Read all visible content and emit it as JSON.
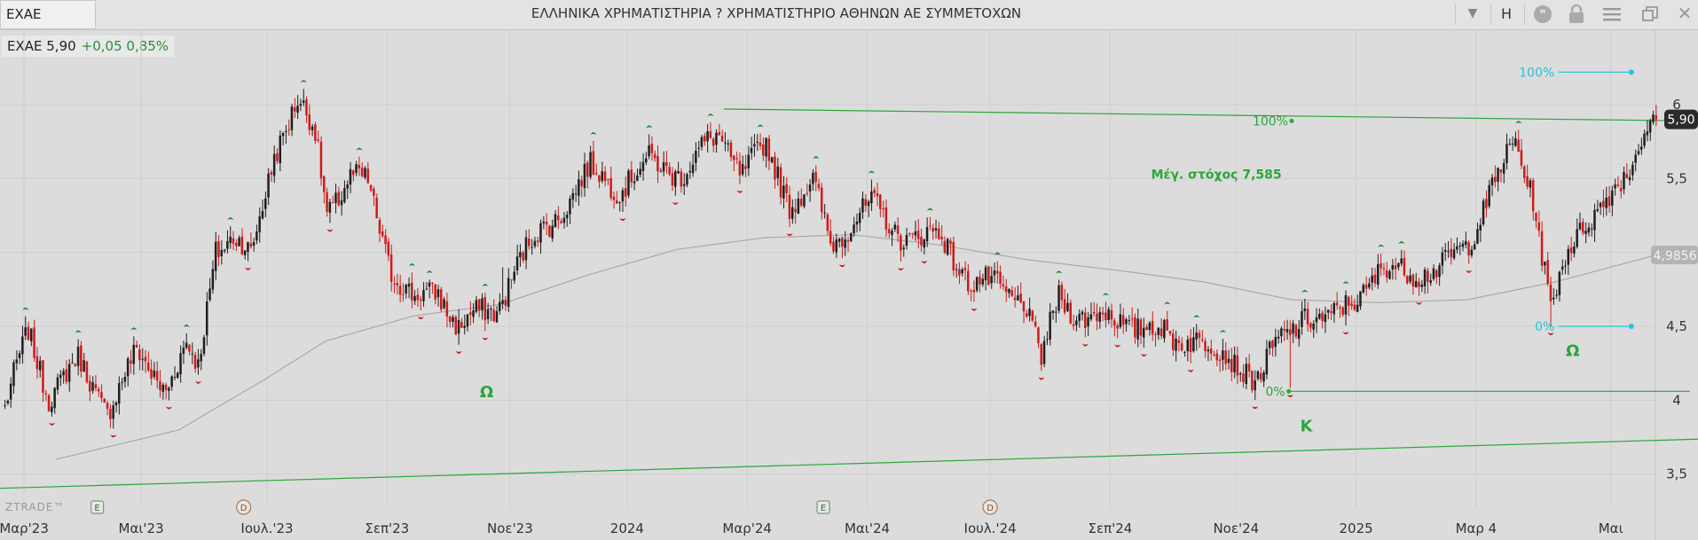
{
  "toolbar": {
    "symbol": "EXAE",
    "title": "ΕΛΛΗΝΙΚΑ ΧΡΗΜΑΤΙΣΤΗΡΙΑ ? ΧΡΗΜΑΤΙΣΤΗΡΙΟ ΑΘΗΝΩΝ ΑΕ ΣΥΜΜΕΤΟΧΩΝ",
    "period_label": "H",
    "icons": [
      "chevron-down-icon",
      "chat-icon",
      "lock-icon",
      "menu-icon",
      "restore-icon",
      "close-icon"
    ]
  },
  "quote": {
    "symbol_price": "EXAE 5,90",
    "change": "+0,05 0,85%"
  },
  "branding": {
    "watermark": "ZTRADE™"
  },
  "colors": {
    "up_candle": "#1f1f1f",
    "down_candle": "#d01a1a",
    "trend_line": "#2aa63a",
    "moving_average": "#a9a9a9",
    "fib_cyan": "#22c6d6",
    "marker_green": "#1c8a32",
    "marker_red": "#cc1a1a"
  },
  "chart_data": {
    "type": "candlestick",
    "ylim": [
      3.33,
      6.27
    ],
    "y_ticks": [
      {
        "value": 6,
        "label": "6"
      },
      {
        "value": 5.5,
        "label": "5,5"
      },
      {
        "value": 5,
        "label": "5"
      },
      {
        "value": 4.5,
        "label": "4,5"
      },
      {
        "value": 4,
        "label": "4"
      },
      {
        "value": 3.5,
        "label": "3,5"
      }
    ],
    "x_ticks": [
      "Μαρ'23",
      "Μαι'23",
      "Ιουλ.'23",
      "Σεπ'23",
      "Νοε'23",
      "2024",
      "Μαρ'24",
      "Μαι'24",
      "Ιουλ.'24",
      "Σεπ'24",
      "Νοε'24",
      "2025",
      "Μαρ 4",
      "Μαι"
    ],
    "x_tick_index": [
      7,
      47,
      90,
      131,
      173,
      213,
      254,
      295,
      337,
      378,
      421,
      462,
      503,
      549
    ],
    "price_anchors": [
      [
        0,
        3.95
      ],
      [
        8,
        4.45
      ],
      [
        15,
        4.05
      ],
      [
        25,
        4.25
      ],
      [
        35,
        3.95
      ],
      [
        45,
        4.3
      ],
      [
        55,
        4.1
      ],
      [
        62,
        4.35
      ],
      [
        66,
        4.2
      ],
      [
        72,
        5.05
      ],
      [
        78,
        5.1
      ],
      [
        84,
        4.95
      ],
      [
        92,
        5.7
      ],
      [
        100,
        6.0
      ],
      [
        106,
        5.8
      ],
      [
        110,
        5.3
      ],
      [
        118,
        5.5
      ],
      [
        124,
        5.45
      ],
      [
        132,
        4.9
      ],
      [
        140,
        4.65
      ],
      [
        148,
        4.75
      ],
      [
        155,
        4.5
      ],
      [
        160,
        4.55
      ],
      [
        168,
        4.62
      ],
      [
        174,
        4.9
      ],
      [
        182,
        5.1
      ],
      [
        190,
        5.3
      ],
      [
        200,
        5.55
      ],
      [
        210,
        5.45
      ],
      [
        220,
        5.6
      ],
      [
        232,
        5.55
      ],
      [
        244,
        5.8
      ],
      [
        252,
        5.55
      ],
      [
        260,
        5.7
      ],
      [
        268,
        5.35
      ],
      [
        276,
        5.45
      ],
      [
        282,
        5.05
      ],
      [
        290,
        5.25
      ],
      [
        296,
        5.3
      ],
      [
        304,
        5.15
      ],
      [
        312,
        5.1
      ],
      [
        320,
        5.1
      ],
      [
        330,
        4.8
      ],
      [
        340,
        4.75
      ],
      [
        348,
        4.7
      ],
      [
        354,
        4.25
      ],
      [
        360,
        4.7
      ],
      [
        370,
        4.55
      ],
      [
        380,
        4.55
      ],
      [
        390,
        4.5
      ],
      [
        398,
        4.4
      ],
      [
        406,
        4.45
      ],
      [
        414,
        4.3
      ],
      [
        422,
        4.25
      ],
      [
        428,
        4.15
      ],
      [
        436,
        4.4
      ],
      [
        444,
        4.6
      ],
      [
        452,
        4.5
      ],
      [
        460,
        4.7
      ],
      [
        470,
        4.85
      ],
      [
        480,
        4.9
      ],
      [
        490,
        4.85
      ],
      [
        500,
        5.1
      ],
      [
        510,
        5.5
      ],
      [
        516,
        5.75
      ],
      [
        522,
        5.4
      ],
      [
        528,
        4.6
      ],
      [
        534,
        5.0
      ],
      [
        540,
        5.25
      ],
      [
        548,
        5.35
      ],
      [
        554,
        5.5
      ],
      [
        560,
        5.88
      ],
      [
        563,
        5.9
      ]
    ],
    "moving_average": [
      [
        18,
        3.6
      ],
      [
        60,
        3.8
      ],
      [
        90,
        4.15
      ],
      [
        110,
        4.4
      ],
      [
        140,
        4.57
      ],
      [
        170,
        4.65
      ],
      [
        200,
        4.85
      ],
      [
        230,
        5.02
      ],
      [
        260,
        5.1
      ],
      [
        290,
        5.12
      ],
      [
        320,
        5.05
      ],
      [
        350,
        4.95
      ],
      [
        380,
        4.88
      ],
      [
        410,
        4.8
      ],
      [
        440,
        4.68
      ],
      [
        470,
        4.66
      ],
      [
        500,
        4.68
      ],
      [
        530,
        4.8
      ],
      [
        564,
        4.98
      ]
    ],
    "ma_last_label": "4,9856",
    "last_price_label": "5,90",
    "last_price": 5.9,
    "n_bars": 565,
    "trendlines": [
      {
        "from": [
          -8,
          3.4
        ],
        "to": [
          585,
          3.74
        ]
      },
      {
        "from": [
          246,
          5.97
        ],
        "to": [
          576,
          5.89
        ]
      },
      {
        "from": [
          439,
          4.06
        ],
        "to": [
          576,
          4.06
        ]
      }
    ],
    "fib_levels": [
      {
        "label": "100%",
        "x": 440,
        "y": 5.89,
        "color": "trend_line"
      },
      {
        "label": "0%",
        "x": 439,
        "y": 4.06,
        "color": "trend_line"
      },
      {
        "label": "100%",
        "x": 531,
        "y": 6.22,
        "color": "fib_cyan",
        "x_end": 556
      },
      {
        "label": "0%",
        "x": 531,
        "y": 4.5,
        "color": "fib_cyan",
        "x_end": 556
      }
    ],
    "annotations": [
      {
        "text": "Μέγ. στόχος 7,585",
        "x": 392,
        "y": 5.5
      },
      {
        "text": "Ω",
        "x": 165,
        "y": 4.02
      },
      {
        "text": "K",
        "x": 445,
        "y": 3.79
      },
      {
        "text": "Ω",
        "x": 536,
        "y": 4.3
      }
    ],
    "event_markers": [
      {
        "letter": "E",
        "x": 32,
        "style": "box"
      },
      {
        "letter": "D",
        "x": 82,
        "style": "circle"
      },
      {
        "letter": "E",
        "x": 280,
        "style": "box"
      },
      {
        "letter": "D",
        "x": 337,
        "style": "circle"
      }
    ]
  }
}
